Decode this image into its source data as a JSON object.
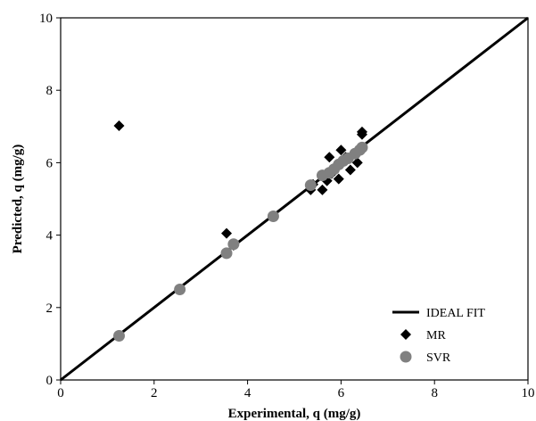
{
  "chart_data": {
    "type": "scatter",
    "title": "",
    "xlabel": "Experimental, q (mg/g)",
    "ylabel": "Predicted, q (mg/g)",
    "xlim": [
      0,
      10
    ],
    "ylim": [
      0,
      10
    ],
    "xticks": [
      0,
      2,
      4,
      6,
      8,
      10
    ],
    "yticks": [
      0,
      2,
      4,
      6,
      8,
      10
    ],
    "grid": false,
    "legend_position": "bottom-right",
    "series": [
      {
        "name": "IDEAL FIT",
        "kind": "line",
        "color": "#000000",
        "points": [
          [
            0,
            0
          ],
          [
            10,
            10
          ]
        ]
      },
      {
        "name": "MR",
        "kind": "diamond",
        "color": "#000000",
        "points": [
          [
            1.25,
            7.02
          ],
          [
            3.55,
            4.05
          ],
          [
            3.7,
            3.72
          ],
          [
            5.35,
            5.25
          ],
          [
            5.4,
            5.4
          ],
          [
            5.6,
            5.25
          ],
          [
            5.7,
            5.5
          ],
          [
            5.75,
            6.15
          ],
          [
            5.8,
            5.7
          ],
          [
            5.95,
            5.55
          ],
          [
            6.0,
            6.35
          ],
          [
            6.1,
            6.15
          ],
          [
            6.2,
            5.8
          ],
          [
            6.35,
            6.0
          ],
          [
            6.45,
            6.85
          ],
          [
            6.45,
            6.78
          ]
        ]
      },
      {
        "name": "SVR",
        "kind": "circle",
        "color": "#808080",
        "points": [
          [
            1.25,
            1.22
          ],
          [
            2.55,
            2.5
          ],
          [
            3.55,
            3.5
          ],
          [
            3.7,
            3.75
          ],
          [
            4.55,
            4.52
          ],
          [
            5.35,
            5.38
          ],
          [
            5.6,
            5.65
          ],
          [
            5.75,
            5.72
          ],
          [
            5.85,
            5.82
          ],
          [
            5.95,
            5.95
          ],
          [
            6.05,
            6.05
          ],
          [
            6.15,
            6.12
          ],
          [
            6.3,
            6.25
          ],
          [
            6.4,
            6.35
          ],
          [
            6.45,
            6.42
          ]
        ]
      }
    ]
  }
}
